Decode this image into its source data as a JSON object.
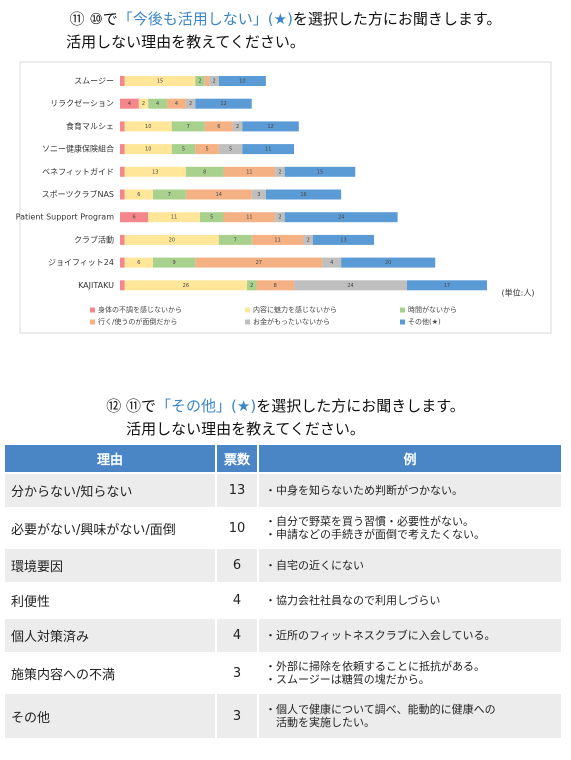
{
  "section1": {
    "heading": {
      "prefix": "⑪ ⑩で",
      "highlight": "「今後も活用しない」(★)",
      "suffix": "を選択した方にお聞きします。",
      "line2": "活用しない理由を教えてください。"
    },
    "chart_data": {
      "type": "stacked-bar-horizontal",
      "unit_note": "(単位:人)",
      "categories": [
        "スムージー",
        "リラクゼーション",
        "食育マルシェ",
        "ソニー健康保険組合",
        "ベネフィットガイド",
        "スポーツクラブNAS",
        "Patient Support Program",
        "クラブ活動",
        "ジョイフィット24",
        "KAJITAKU"
      ],
      "series": [
        {
          "name": "身体の不調を感じないから",
          "color": "#f4868c",
          "values": [
            1,
            4,
            1,
            1,
            1,
            1,
            6,
            1,
            1,
            1
          ]
        },
        {
          "name": "内容に魅力を感じないから",
          "color": "#ffe699",
          "values": [
            15,
            2,
            10,
            10,
            13,
            6,
            11,
            20,
            6,
            26
          ]
        },
        {
          "name": "時間がないから",
          "color": "#a9d18e",
          "values": [
            2,
            4,
            7,
            5,
            8,
            7,
            5,
            7,
            9,
            2
          ]
        },
        {
          "name": "行く/使うのが面倒だから",
          "color": "#f4b183",
          "values": [
            1,
            4,
            6,
            5,
            11,
            14,
            11,
            11,
            27,
            8
          ]
        },
        {
          "name": "お金がもったいないから",
          "color": "#bfbfbf",
          "values": [
            2,
            2,
            2,
            5,
            2,
            3,
            2,
            2,
            4,
            24
          ]
        },
        {
          "name": "その他(★)",
          "color": "#5b9bd5",
          "values": [
            10,
            12,
            12,
            11,
            15,
            16,
            24,
            13,
            20,
            17
          ]
        }
      ]
    }
  },
  "section2": {
    "heading": {
      "prefix": "⑫ ⑪で",
      "highlight": "「その他」(★)",
      "suffix": "を選択した方にお聞きします。",
      "line2": "活用しない理由を教えてください。"
    },
    "table": {
      "header": [
        "理由",
        "票数",
        "例"
      ],
      "rows": [
        [
          "分からない/知らない",
          13,
          [
            "・中身を知らないため判断がつかない。"
          ]
        ],
        [
          "必要がない/興味がない/面倒",
          10,
          [
            "・自分で野菜を買う習慣・必要性がない。",
            "・申請などの手続きが面倒で考えたくない。"
          ]
        ],
        [
          "環境要因",
          6,
          [
            "・自宅の近くにない"
          ]
        ],
        [
          "利便性",
          4,
          [
            "・協力会社社員なので利用しづらい"
          ]
        ],
        [
          "個人対策済み",
          4,
          [
            "・近所のフィットネスクラブに入会している。"
          ]
        ],
        [
          "施策内容への不満",
          3,
          [
            "・外部に掃除を依頼することに抵抗がある。",
            "・スムージーは糖質の塊だから。"
          ]
        ],
        [
          "その他",
          3,
          [
            "・個人で健康について調べ、能動的に健康への",
            "　活動を実施したい。"
          ]
        ]
      ]
    }
  }
}
